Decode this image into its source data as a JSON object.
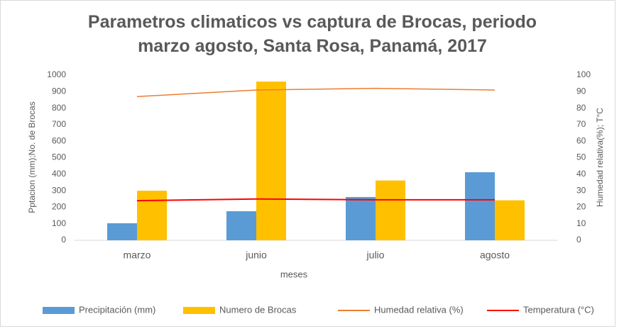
{
  "chart_data": {
    "type": "bar",
    "title": "Parametros climaticos vs captura de Brocas, periodo marzo agosto, Santa Rosa, Panamá, 2017",
    "x_label": "meses",
    "y_label": "Pptacion (mm);No. de Brocas",
    "y2_label": "Humedad relativa(%); T°C",
    "categories": [
      "marzo",
      "junio",
      "julio",
      "agosto"
    ],
    "series": [
      {
        "name": "Precipitación (mm)",
        "type": "bar",
        "color": "#5b9bd5",
        "values": [
          103,
          176,
          262,
          412
        ]
      },
      {
        "name": "Numero de Brocas",
        "type": "bar",
        "color": "#ffc000",
        "values": [
          300,
          961,
          362,
          242
        ]
      },
      {
        "name": "Humedad relativa (%)",
        "type": "line",
        "axis": "y2",
        "color": "#ed7d31",
        "values": [
          87,
          91,
          92,
          91
        ]
      },
      {
        "name": "Temperatura (°C)",
        "type": "line",
        "axis": "y2",
        "color": "#ff0000",
        "values": [
          24,
          25,
          24.5,
          24.5
        ]
      }
    ],
    "ylim": [
      0,
      1000
    ],
    "yticks": [
      0,
      100,
      200,
      300,
      400,
      500,
      600,
      700,
      800,
      900,
      1000
    ],
    "y2lim": [
      0,
      100
    ],
    "y2ticks": [
      0,
      10,
      20,
      30,
      40,
      50,
      60,
      70,
      80,
      90,
      100
    ],
    "grid": false,
    "legend": "bottom"
  }
}
